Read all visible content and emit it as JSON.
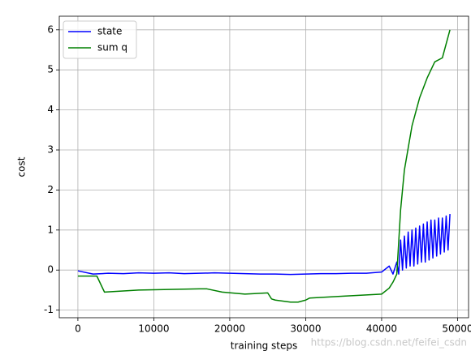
{
  "chart_data": {
    "type": "line",
    "xlabel": "training steps",
    "ylabel": "cost",
    "xlim": [
      -2450,
      51450
    ],
    "ylim": [
      -1.19,
      6.34
    ],
    "xticks": [
      0,
      10000,
      20000,
      30000,
      40000,
      50000
    ],
    "yticks": [
      -1,
      0,
      1,
      2,
      3,
      4,
      5,
      6
    ],
    "grid": true,
    "legend": "upper left",
    "annotation": "https://blog.csdn.net/feifei_csdn",
    "series": [
      {
        "name": "state",
        "color": "#0000ff",
        "x": [
          0,
          2000,
          4000,
          6000,
          8000,
          10000,
          12000,
          14000,
          16000,
          18000,
          20000,
          22000,
          24000,
          26000,
          28000,
          30000,
          32000,
          34000,
          36000,
          38000,
          40000,
          41000,
          41500,
          42000,
          42250,
          42500,
          42750,
          43000,
          43250,
          43500,
          43750,
          44000,
          44250,
          44500,
          44750,
          45000,
          45250,
          45500,
          45750,
          46000,
          46250,
          46500,
          46750,
          47000,
          47250,
          47500,
          47750,
          48000,
          48250,
          48500,
          48750,
          49000
        ],
        "values": [
          -0.02,
          -0.1,
          -0.08,
          -0.09,
          -0.07,
          -0.08,
          -0.07,
          -0.09,
          -0.08,
          -0.07,
          -0.08,
          -0.09,
          -0.1,
          -0.1,
          -0.11,
          -0.1,
          -0.09,
          -0.09,
          -0.08,
          -0.08,
          -0.05,
          0.1,
          -0.1,
          0.2,
          -0.1,
          0.75,
          0.0,
          0.85,
          0.05,
          0.95,
          0.1,
          1.0,
          0.1,
          1.05,
          0.15,
          1.1,
          0.2,
          1.15,
          0.2,
          1.2,
          0.25,
          1.25,
          0.3,
          1.25,
          0.35,
          1.3,
          0.4,
          1.3,
          0.45,
          1.35,
          0.5,
          1.4
        ]
      },
      {
        "name": "sum q",
        "color": "#008000",
        "x": [
          0,
          2500,
          3500,
          8000,
          16000,
          17000,
          19000,
          22000,
          25000,
          25500,
          26000,
          28000,
          29000,
          30000,
          30500,
          35000,
          38000,
          40000,
          41000,
          41500,
          42000,
          42500,
          43000,
          44000,
          45000,
          46000,
          47000,
          48000,
          49000
        ],
        "values": [
          -0.15,
          -0.15,
          -0.55,
          -0.5,
          -0.47,
          -0.47,
          -0.55,
          -0.6,
          -0.57,
          -0.72,
          -0.75,
          -0.8,
          -0.8,
          -0.75,
          -0.7,
          -0.65,
          -0.62,
          -0.6,
          -0.45,
          -0.3,
          -0.1,
          1.5,
          2.5,
          3.6,
          4.3,
          4.8,
          5.2,
          5.3,
          6.0
        ]
      }
    ]
  }
}
